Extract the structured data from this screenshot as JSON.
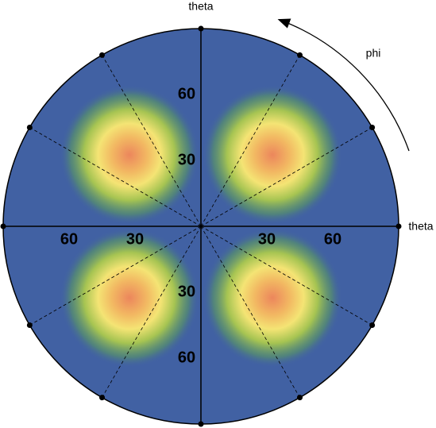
{
  "chart_data": {
    "type": "polar-density",
    "top_label": "theta",
    "right_label": "theta",
    "angle_label": "phi",
    "rlim": [
      0,
      90
    ],
    "rticks": [
      30,
      60
    ],
    "spoke_step": 30,
    "peaks": [
      {
        "theta": 46,
        "phi": 45
      },
      {
        "theta": 46,
        "phi": 135
      },
      {
        "theta": 46,
        "phi": 225
      },
      {
        "theta": 46,
        "phi": 315
      }
    ]
  }
}
